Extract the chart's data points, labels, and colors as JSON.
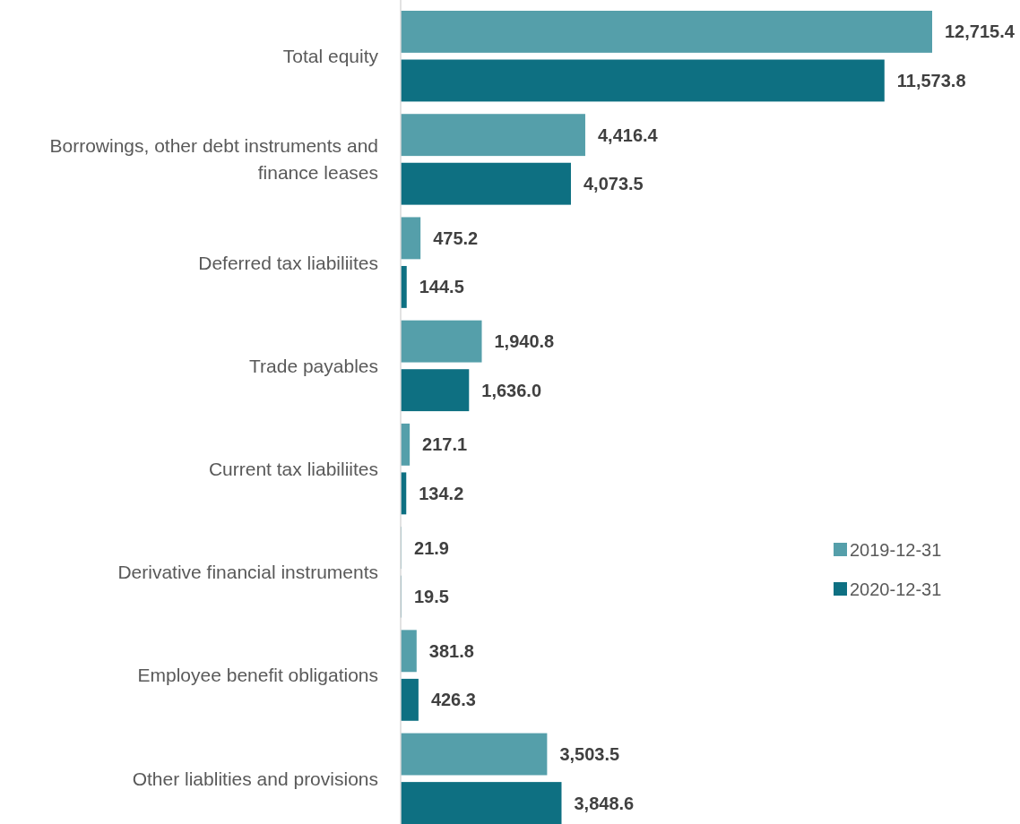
{
  "chart_data": {
    "type": "bar",
    "orientation": "horizontal",
    "categories": [
      "Total equity",
      "Borrowings, other debt instruments and finance leases",
      "Deferred tax liabiliites",
      "Trade payables",
      "Current tax liabiliites",
      "Derivative financial instruments",
      "Employee benefit obligations",
      "Other liablities and provisions"
    ],
    "series": [
      {
        "name": "2019-12-31",
        "color": "#559faa",
        "values": [
          12715.4,
          4416.4,
          475.2,
          1940.8,
          217.1,
          21.9,
          381.8,
          3503.5
        ],
        "value_labels": [
          "12,715.4",
          "4,416.4",
          "475.2",
          "1,940.8",
          "217.1",
          "21.9",
          "381.8",
          "3,503.5"
        ]
      },
      {
        "name": "2020-12-31",
        "color": "#0e7082",
        "values": [
          11573.8,
          4073.5,
          144.5,
          1636.0,
          134.2,
          19.5,
          426.3,
          3848.6
        ],
        "value_labels": [
          "11,573.8",
          "4,073.5",
          "144.5",
          "1,636.0",
          "134.2",
          "19.5",
          "426.3",
          "3,848.6"
        ]
      }
    ],
    "legend": "right"
  }
}
